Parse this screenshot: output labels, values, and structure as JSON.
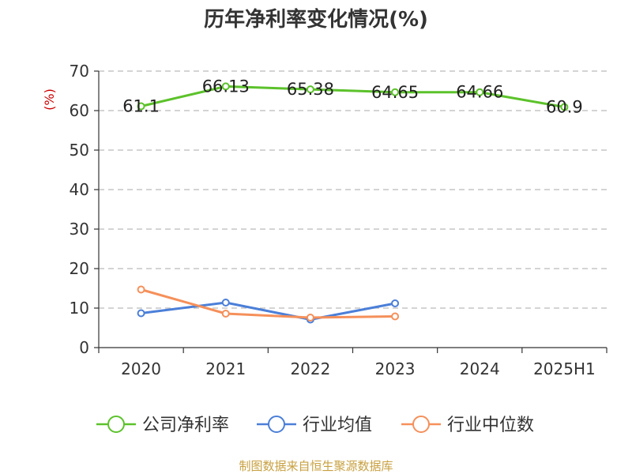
{
  "chart_data": {
    "type": "line",
    "title": "历年净利率变化情况(%)",
    "ylabel": "(%)",
    "ylim": [
      0,
      70
    ],
    "yticks": [
      0,
      10,
      20,
      30,
      40,
      50,
      60,
      70
    ],
    "grid": true,
    "legend_position": "bottom",
    "categories": [
      "2020",
      "2021",
      "2022",
      "2023",
      "2024",
      "2025H1"
    ],
    "series": [
      {
        "name": "公司净利率",
        "color": "#5cc22b",
        "values": [
          61.1,
          66.13,
          65.38,
          64.65,
          64.66,
          60.9
        ],
        "labels": true
      },
      {
        "name": "行业均值",
        "color": "#4b7fd8",
        "values": [
          8.7,
          11.4,
          7.1,
          11.2,
          null,
          null
        ],
        "labels": false
      },
      {
        "name": "行业中位数",
        "color": "#f5905a",
        "values": [
          14.7,
          8.6,
          7.6,
          7.9,
          null,
          null
        ],
        "labels": false
      }
    ]
  },
  "source": "制图数据来自恒生聚源数据库"
}
